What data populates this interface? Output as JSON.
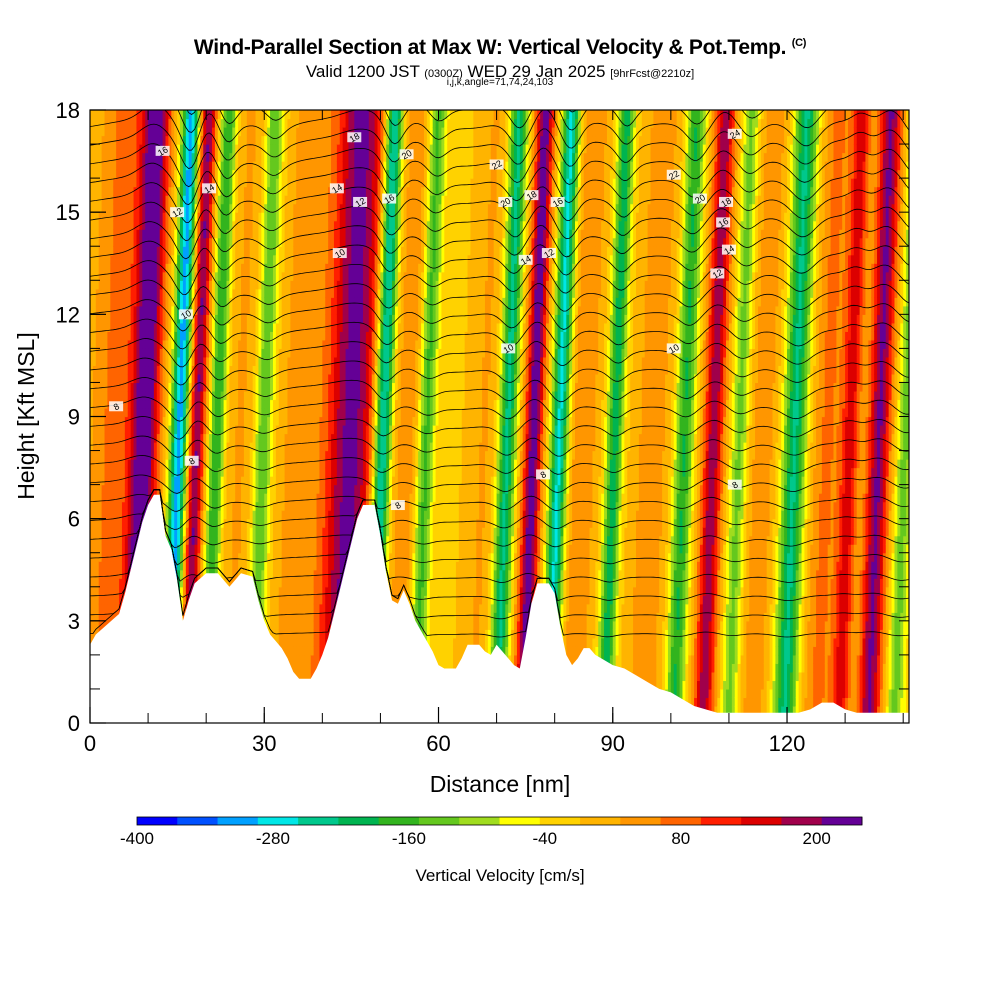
{
  "title": {
    "main": "Wind-Parallel Section at Max W: Vertical Velocity & Pot.Temp.",
    "copyright": "(C)",
    "valid_prefix": "Valid 1200 JST",
    "valid_utc": "(0300Z)",
    "valid_date": "WED 29 Jan 2025",
    "forecast": "[9hrFcst@2210z]",
    "indices": "i,j,k,angle=71,74,24,103"
  },
  "chart_data": {
    "type": "heatmap",
    "xlabel": "Distance [nm]",
    "ylabel": "Height [Kft MSL]",
    "xlim": [
      0,
      141
    ],
    "ylim": [
      0,
      18
    ],
    "xticks": [
      "0",
      "30",
      "60",
      "90",
      "120"
    ],
    "yticks": [
      "0",
      "3",
      "6",
      "9",
      "12",
      "15",
      "18"
    ],
    "colorbar": {
      "label": "Vertical Velocity [cm/s]",
      "tick_labels": [
        "-400",
        "-280",
        "-160",
        "-40",
        "80",
        "200"
      ],
      "tick_values": [
        -400,
        -280,
        -160,
        -40,
        80,
        200
      ],
      "range": [
        -400,
        240
      ],
      "colors": [
        "#0000ff",
        "#0050ff",
        "#00a0ff",
        "#00e6e6",
        "#00c88c",
        "#00b450",
        "#32b41e",
        "#64c81e",
        "#a0dc1e",
        "#ffff00",
        "#ffd200",
        "#ffb400",
        "#ff9600",
        "#ff6400",
        "#ff1e00",
        "#dc0000",
        "#a0004b",
        "#640096"
      ]
    },
    "terrain_kft": [
      [
        0,
        2.3
      ],
      [
        1,
        2.6
      ],
      [
        3,
        2.9
      ],
      [
        5,
        3.2
      ],
      [
        6,
        3.8
      ],
      [
        7,
        4.5
      ],
      [
        8,
        5.2
      ],
      [
        9,
        5.9
      ],
      [
        10,
        6.4
      ],
      [
        11,
        6.7
      ],
      [
        12,
        6.7
      ],
      [
        13,
        5.5
      ],
      [
        14,
        5.1
      ],
      [
        15,
        4.2
      ],
      [
        16,
        3.0
      ],
      [
        17,
        3.6
      ],
      [
        18,
        4.1
      ],
      [
        20,
        4.4
      ],
      [
        22,
        4.4
      ],
      [
        24,
        4.0
      ],
      [
        26,
        4.4
      ],
      [
        28,
        4.3
      ],
      [
        29,
        3.6
      ],
      [
        30,
        3.0
      ],
      [
        31,
        2.6
      ],
      [
        32,
        2.4
      ],
      [
        33,
        2.2
      ],
      [
        34,
        1.9
      ],
      [
        35,
        1.5
      ],
      [
        36,
        1.3
      ],
      [
        38,
        1.3
      ],
      [
        39,
        1.6
      ],
      [
        40,
        2.0
      ],
      [
        41,
        2.5
      ],
      [
        42,
        3.2
      ],
      [
        43,
        3.9
      ],
      [
        44,
        4.6
      ],
      [
        45,
        5.3
      ],
      [
        46,
        6.0
      ],
      [
        47,
        6.4
      ],
      [
        49,
        6.4
      ],
      [
        50,
        5.5
      ],
      [
        51,
        4.4
      ],
      [
        52,
        3.6
      ],
      [
        53,
        3.5
      ],
      [
        54,
        3.9
      ],
      [
        55,
        3.5
      ],
      [
        56,
        3.0
      ],
      [
        57,
        2.7
      ],
      [
        58,
        2.4
      ],
      [
        59,
        2.1
      ],
      [
        60,
        1.7
      ],
      [
        61,
        1.6
      ],
      [
        63,
        1.6
      ],
      [
        64,
        1.9
      ],
      [
        65,
        2.3
      ],
      [
        67,
        2.3
      ],
      [
        68,
        2.1
      ],
      [
        69,
        2.0
      ],
      [
        70,
        2.3
      ],
      [
        71,
        2.1
      ],
      [
        72,
        1.9
      ],
      [
        73,
        1.7
      ],
      [
        74,
        1.6
      ],
      [
        75,
        2.5
      ],
      [
        76,
        3.5
      ],
      [
        77,
        4.1
      ],
      [
        79,
        4.1
      ],
      [
        80,
        3.8
      ],
      [
        81,
        2.8
      ],
      [
        82,
        2.0
      ],
      [
        83,
        1.7
      ],
      [
        84,
        1.9
      ],
      [
        85,
        2.2
      ],
      [
        86,
        2.2
      ],
      [
        87,
        2.0
      ],
      [
        88,
        1.9
      ],
      [
        90,
        1.7
      ],
      [
        92,
        1.6
      ],
      [
        94,
        1.4
      ],
      [
        96,
        1.2
      ],
      [
        98,
        1.0
      ],
      [
        100,
        0.9
      ],
      [
        102,
        0.7
      ],
      [
        104,
        0.5
      ],
      [
        106,
        0.4
      ],
      [
        108,
        0.3
      ],
      [
        110,
        0.3
      ],
      [
        114,
        0.3
      ],
      [
        116,
        0.3
      ],
      [
        118,
        0.3
      ],
      [
        120,
        0.3
      ],
      [
        122,
        0.3
      ],
      [
        124,
        0.4
      ],
      [
        126,
        0.6
      ],
      [
        128,
        0.6
      ],
      [
        130,
        0.4
      ],
      [
        132,
        0.3
      ],
      [
        141,
        0.3
      ]
    ],
    "vertical_velocity_bands": [
      {
        "x": 2,
        "w": 4,
        "amp": 80
      },
      {
        "x": 7.5,
        "w": 2.5,
        "amp": 260
      },
      {
        "x": 13.5,
        "w": 1.5,
        "amp": -300
      },
      {
        "x": 16.5,
        "w": 1.4,
        "amp": 220
      },
      {
        "x": 20,
        "w": 1.3,
        "amp": -180
      },
      {
        "x": 24,
        "w": 2.5,
        "amp": 40
      },
      {
        "x": 28,
        "w": 1.5,
        "amp": -140
      },
      {
        "x": 34,
        "w": 3,
        "amp": 60
      },
      {
        "x": 43,
        "w": 4.5,
        "amp": 230
      },
      {
        "x": 48.5,
        "w": 1.5,
        "amp": -300
      },
      {
        "x": 53,
        "w": 2.5,
        "amp": 60
      },
      {
        "x": 56,
        "w": 1.5,
        "amp": -160
      },
      {
        "x": 62,
        "w": 3,
        "amp": 0
      },
      {
        "x": 66,
        "w": 2,
        "amp": 40
      },
      {
        "x": 70,
        "w": 1.5,
        "amp": -220
      },
      {
        "x": 74.5,
        "w": 1.6,
        "amp": 240
      },
      {
        "x": 79,
        "w": 1.5,
        "amp": -260
      },
      {
        "x": 83,
        "w": 2.5,
        "amp": 70
      },
      {
        "x": 88.5,
        "w": 1.4,
        "amp": -200
      },
      {
        "x": 95,
        "w": 3,
        "amp": 60
      },
      {
        "x": 100.5,
        "w": 1.6,
        "amp": -180
      },
      {
        "x": 105.5,
        "w": 1.8,
        "amp": 200
      },
      {
        "x": 110,
        "w": 1.5,
        "amp": -120
      },
      {
        "x": 114,
        "w": 2.5,
        "amp": 60
      },
      {
        "x": 119.5,
        "w": 2,
        "amp": -220
      },
      {
        "x": 125,
        "w": 2.5,
        "amp": 80
      },
      {
        "x": 129,
        "w": 1.6,
        "amp": 160
      },
      {
        "x": 134,
        "w": 2,
        "amp": 220
      },
      {
        "x": 138.5,
        "w": 1.5,
        "amp": -120
      }
    ],
    "contour_labels": [
      {
        "text": "8",
        "x": 4.5,
        "y": 9.3
      },
      {
        "text": "8",
        "x": 17.5,
        "y": 7.7
      },
      {
        "text": "8",
        "x": 53,
        "y": 6.4
      },
      {
        "text": "8",
        "x": 78,
        "y": 7.3
      },
      {
        "text": "8",
        "x": 111,
        "y": 7.0
      },
      {
        "text": "10",
        "x": 16.5,
        "y": 12.0
      },
      {
        "text": "10",
        "x": 43,
        "y": 13.8
      },
      {
        "text": "10",
        "x": 72,
        "y": 11.0
      },
      {
        "text": "10",
        "x": 100.5,
        "y": 11.0
      },
      {
        "text": "12",
        "x": 15,
        "y": 15.0
      },
      {
        "text": "12",
        "x": 46.5,
        "y": 15.3
      },
      {
        "text": "12",
        "x": 79,
        "y": 13.8
      },
      {
        "text": "12",
        "x": 108,
        "y": 13.2
      },
      {
        "text": "14",
        "x": 20.5,
        "y": 15.7
      },
      {
        "text": "14",
        "x": 42.5,
        "y": 15.7
      },
      {
        "text": "14",
        "x": 75,
        "y": 13.6
      },
      {
        "text": "14",
        "x": 110,
        "y": 13.9
      },
      {
        "text": "16",
        "x": 12.5,
        "y": 16.8
      },
      {
        "text": "16",
        "x": 51.5,
        "y": 15.4
      },
      {
        "text": "16",
        "x": 80.5,
        "y": 15.3
      },
      {
        "text": "16",
        "x": 109,
        "y": 14.7
      },
      {
        "text": "18",
        "x": 45.5,
        "y": 17.2
      },
      {
        "text": "18",
        "x": 76,
        "y": 15.5
      },
      {
        "text": "18",
        "x": 109.5,
        "y": 15.3
      },
      {
        "text": "20",
        "x": 54.5,
        "y": 16.7
      },
      {
        "text": "20",
        "x": 71.5,
        "y": 15.3
      },
      {
        "text": "20",
        "x": 105,
        "y": 15.4
      },
      {
        "text": "22",
        "x": 70,
        "y": 16.4
      },
      {
        "text": "22",
        "x": 100.5,
        "y": 16.1
      },
      {
        "text": "24",
        "x": 111,
        "y": 17.3
      }
    ]
  }
}
